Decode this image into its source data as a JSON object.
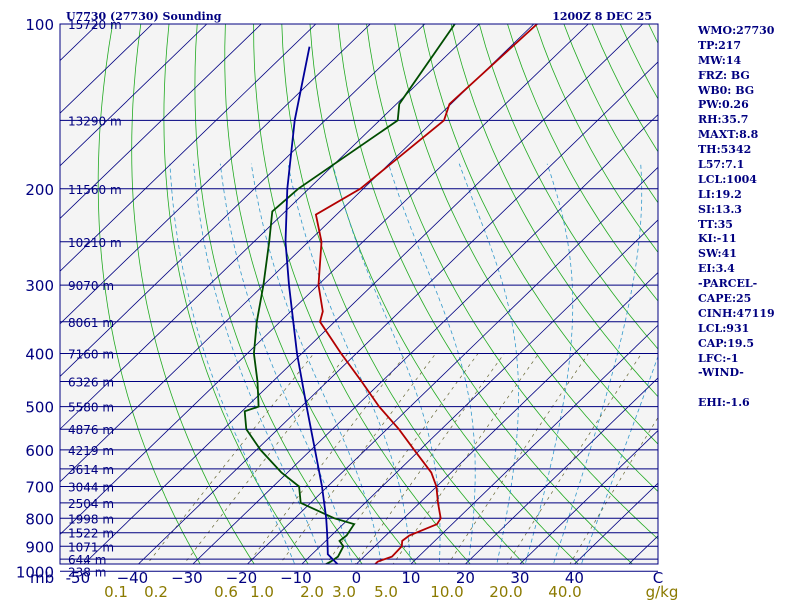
{
  "chart_data": {
    "type": "skew-t",
    "station_title": "U7730 (27730) Sounding",
    "time_title": "1200Z  8 DEC 25",
    "pressure_axis_unit": "mb",
    "pressure_levels": [
      100,
      200,
      300,
      400,
      500,
      600,
      700,
      800,
      900,
      1000
    ],
    "pressure_range": [
      100,
      1050
    ],
    "temperature_ticks": [
      -50,
      -40,
      -30,
      -20,
      -10,
      0,
      10,
      20,
      30,
      40
    ],
    "temperature_tick_labels": [
      "-50",
      "−40",
      "−30",
      "−20",
      "−10",
      "0",
      "10",
      "20",
      "30",
      "40"
    ],
    "temperature_axis_unit": "C",
    "mixing_ratio_unit": "g/kg",
    "mixing_ratio_labels": [
      "0.1",
      "0.2",
      "0.6",
      "1.0",
      "2.0",
      "3.0",
      "5.0",
      "10.0",
      "20.0",
      "40.0"
    ],
    "heights": [
      {
        "p": 100,
        "label": "15720 m"
      },
      {
        "p": 150,
        "label": "13290 m"
      },
      {
        "p": 200,
        "label": "11560 m"
      },
      {
        "p": 250,
        "label": "10210 m"
      },
      {
        "p": 300,
        "label": "9070 m"
      },
      {
        "p": 350,
        "label": "8061 m"
      },
      {
        "p": 400,
        "label": "7160 m"
      },
      {
        "p": 450,
        "label": "6326 m"
      },
      {
        "p": 500,
        "label": "5580 m"
      },
      {
        "p": 550,
        "label": "4876 m"
      },
      {
        "p": 600,
        "label": "4219 m"
      },
      {
        "p": 650,
        "label": "3614 m"
      },
      {
        "p": 700,
        "label": "3044 m"
      },
      {
        "p": 750,
        "label": "2504 m"
      },
      {
        "p": 800,
        "label": "1998 m"
      },
      {
        "p": 850,
        "label": "1522 m"
      },
      {
        "p": 900,
        "label": "1071 m"
      },
      {
        "p": 950,
        "label": "644 m"
      },
      {
        "p": 1000,
        "label": "238 m"
      }
    ],
    "series": [
      {
        "name": "Temperature",
        "color": "#b30000",
        "points": [
          {
            "p": 1040,
            "t": -0.8
          },
          {
            "p": 1010,
            "t": -3.8
          },
          {
            "p": 985,
            "t": 0.0
          },
          {
            "p": 960,
            "t": 0.0
          },
          {
            "p": 940,
            "t": 1.7
          },
          {
            "p": 900,
            "t": 1.6
          },
          {
            "p": 880,
            "t": 0.7
          },
          {
            "p": 860,
            "t": 1.0
          },
          {
            "p": 820,
            "t": 4.0
          },
          {
            "p": 800,
            "t": 3.6
          },
          {
            "p": 750,
            "t": 0.3
          },
          {
            "p": 700,
            "t": -3.0
          },
          {
            "p": 660,
            "t": -6.5
          },
          {
            "p": 600,
            "t": -13.8
          },
          {
            "p": 550,
            "t": -20.4
          },
          {
            "p": 500,
            "t": -28.2
          },
          {
            "p": 450,
            "t": -36.0
          },
          {
            "p": 400,
            "t": -44.9
          },
          {
            "p": 350,
            "t": -54.6
          },
          {
            "p": 335,
            "t": -56.0
          },
          {
            "p": 300,
            "t": -61.6
          },
          {
            "p": 250,
            "t": -69.0
          },
          {
            "p": 223,
            "t": -75.0
          },
          {
            "p": 200,
            "t": -71.6
          },
          {
            "p": 150,
            "t": -68.8
          },
          {
            "p": 140,
            "t": -70.8
          },
          {
            "p": 100,
            "t": -69.4
          }
        ]
      },
      {
        "name": "Dewpoint",
        "color": "#004d00",
        "points": [
          {
            "p": 1040,
            "t": -5.1
          },
          {
            "p": 1000,
            "t": -8.1
          },
          {
            "p": 985,
            "t": -9.6
          },
          {
            "p": 960,
            "t": -8.6
          },
          {
            "p": 940,
            "t": -8.2
          },
          {
            "p": 900,
            "t": -9.1
          },
          {
            "p": 880,
            "t": -10.8
          },
          {
            "p": 860,
            "t": -10.5
          },
          {
            "p": 820,
            "t": -11.2
          },
          {
            "p": 800,
            "t": -15.9
          },
          {
            "p": 750,
            "t": -24.9
          },
          {
            "p": 700,
            "t": -28.2
          },
          {
            "p": 660,
            "t": -34.0
          },
          {
            "p": 600,
            "t": -42.0
          },
          {
            "p": 550,
            "t": -48.4
          },
          {
            "p": 510,
            "t": -52.0
          },
          {
            "p": 500,
            "t": -50.3
          },
          {
            "p": 450,
            "t": -55.1
          },
          {
            "p": 400,
            "t": -60.9
          },
          {
            "p": 350,
            "t": -66.2
          },
          {
            "p": 300,
            "t": -71.7
          },
          {
            "p": 250,
            "t": -78.6
          },
          {
            "p": 220,
            "t": -83.6
          },
          {
            "p": 200,
            "t": -83.0
          },
          {
            "p": 150,
            "t": -77.3
          },
          {
            "p": 140,
            "t": -80.0
          },
          {
            "p": 100,
            "t": -84.5
          }
        ]
      },
      {
        "name": "Parcel",
        "color": "#000099",
        "points": [
          {
            "p": 1040,
            "t": -0.8
          },
          {
            "p": 1000,
            "t": -4.3
          },
          {
            "p": 931,
            "t": -10.5
          },
          {
            "p": 900,
            "t": -12.0
          },
          {
            "p": 850,
            "t": -14.6
          },
          {
            "p": 800,
            "t": -17.4
          },
          {
            "p": 700,
            "t": -24.0
          },
          {
            "p": 600,
            "t": -32.0
          },
          {
            "p": 500,
            "t": -41.5
          },
          {
            "p": 400,
            "t": -53.0
          },
          {
            "p": 300,
            "t": -67.0
          },
          {
            "p": 250,
            "t": -75.6
          },
          {
            "p": 200,
            "t": -85.0
          },
          {
            "p": 150,
            "t": -96.2
          },
          {
            "p": 110,
            "t": -107.0
          }
        ]
      }
    ]
  },
  "indices": [
    "WMO:27730",
    "TP:217",
    "MW:14",
    "FRZ: BG",
    "WB0: BG",
    "PW:0.26",
    "RH:35.7",
    "MAXT:8.8",
    "TH:5342",
    "L57:7.1",
    "LCL:1004",
    "LI:19.2",
    "SI:13.3",
    "TT:35",
    "KI:-11",
    "SW:41",
    "EI:3.4",
    "-PARCEL-",
    "CAPE:25",
    "CINH:47119",
    "LCL:931",
    "CAP:19.5",
    "LFC:-1",
    "-WIND-",
    "",
    "EHI:-1.6"
  ],
  "colors": {
    "isobar": "#000080",
    "isotherm": "#000080",
    "dry_adiabat": "#22aa22",
    "moist_adiabat": "#3399cc",
    "mixing_ratio": "#666633",
    "background": "#f4f4f4"
  }
}
